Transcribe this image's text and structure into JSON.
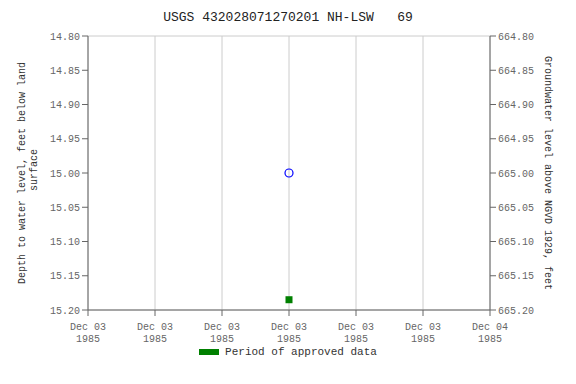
{
  "chart_data": {
    "type": "scatter",
    "title": "USGS 432028071270201 NH-LSW   69",
    "ylabel": "Depth to water level, feet below land\n surface",
    "y2label": "Groundwater level above NGVD 1929, feet",
    "categories": [
      "Dec 03\n1985",
      "Dec 03\n1985",
      "Dec 03\n1985",
      "Dec 03\n1985",
      "Dec 03\n1985",
      "Dec 03\n1985",
      "Dec 04\n1985"
    ],
    "series": [
      {
        "values": [
          null,
          null,
          null,
          15.0,
          null,
          null,
          null
        ],
        "color": "blue",
        "marker": "circle"
      },
      {
        "name": "Period of approved data",
        "values": [
          null,
          null,
          null,
          15.185,
          null,
          null,
          null
        ],
        "color": "#008000",
        "marker": "square"
      }
    ],
    "ylim": [
      15.2,
      14.8
    ],
    "yticks": [
      {
        "value": 14.8,
        "label": "14.80"
      },
      {
        "value": 14.85,
        "label": "14.85"
      },
      {
        "value": 14.9,
        "label": "14.90"
      },
      {
        "value": 14.95,
        "label": "14.95"
      },
      {
        "value": 15.0,
        "label": "15.00"
      },
      {
        "value": 15.05,
        "label": "15.05"
      },
      {
        "value": 15.1,
        "label": "15.10"
      },
      {
        "value": 15.15,
        "label": "15.15"
      },
      {
        "value": 15.2,
        "label": "15.20"
      }
    ],
    "y2lim": [
      665.2,
      664.8
    ],
    "y2ticks": [
      {
        "value": 664.8,
        "label": "664.80"
      },
      {
        "value": 664.85,
        "label": "664.85"
      },
      {
        "value": 664.9,
        "label": "664.90"
      },
      {
        "value": 664.95,
        "label": "664.95"
      },
      {
        "value": 665.0,
        "label": "665.00"
      },
      {
        "value": 665.05,
        "label": "665.05"
      },
      {
        "value": 665.1,
        "label": "665.10"
      },
      {
        "value": 665.15,
        "label": "665.15"
      },
      {
        "value": 665.2,
        "label": "665.20"
      }
    ],
    "grid": true,
    "legend": "bottom"
  }
}
